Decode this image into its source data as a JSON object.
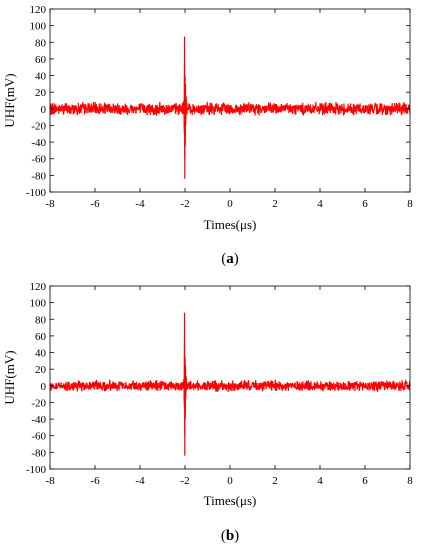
{
  "chart_data": [
    {
      "type": "line",
      "panel_label": "a",
      "caption": "(a)",
      "xlabel": "Times(μs)",
      "ylabel": "UHF(mV)",
      "xlim": [
        -8,
        8
      ],
      "ylim": [
        -100,
        120
      ],
      "x_ticks": [
        -8,
        -6,
        -4,
        -2,
        0,
        2,
        4,
        6,
        8
      ],
      "y_ticks": [
        -100,
        -80,
        -60,
        -40,
        -20,
        0,
        20,
        40,
        60,
        80,
        100,
        120
      ],
      "grid": false,
      "series": [
        {
          "color": "#ff0000",
          "x": [
            -8,
            -6,
            -4,
            -2.2,
            -2.1,
            -2.05,
            -2.03,
            -2.02,
            -2.01,
            -2.0,
            -1.99,
            -1.98,
            -1.97,
            -1.95,
            -1.9,
            -1.8,
            -1.6,
            -1.2,
            0,
            2,
            4,
            6,
            8
          ],
          "y": [
            0,
            0,
            0,
            0,
            3,
            10,
            -30,
            87,
            -84,
            40,
            -45,
            30,
            -20,
            15,
            -10,
            8,
            6,
            4,
            3,
            3,
            3,
            3,
            0
          ],
          "noise_band_mV": 8
        }
      ]
    },
    {
      "type": "line",
      "panel_label": "b",
      "caption": "(b)",
      "xlabel": "Times(μs)",
      "ylabel": "UHF(mV)",
      "xlim": [
        -8,
        8
      ],
      "ylim": [
        -100,
        120
      ],
      "x_ticks": [
        -8,
        -6,
        -4,
        -2,
        0,
        2,
        4,
        6,
        8
      ],
      "y_ticks": [
        -100,
        -80,
        -60,
        -40,
        -20,
        0,
        20,
        40,
        60,
        80,
        100,
        120
      ],
      "grid": false,
      "series": [
        {
          "color": "#ff0000",
          "x": [
            -8,
            -6,
            -4,
            -2.2,
            -2.1,
            -2.05,
            -2.03,
            -2.02,
            -2.01,
            -2.0,
            -1.99,
            -1.98,
            -1.97,
            -1.95,
            -1.9,
            -1.8,
            -1.6,
            -1.2,
            0,
            2,
            4,
            6,
            8
          ],
          "y": [
            0,
            0,
            0,
            0,
            3,
            8,
            -25,
            88,
            -84,
            35,
            -40,
            25,
            -15,
            12,
            -8,
            6,
            4,
            3,
            2,
            2,
            2,
            2,
            0
          ],
          "noise_band_mV": 7
        }
      ]
    }
  ]
}
